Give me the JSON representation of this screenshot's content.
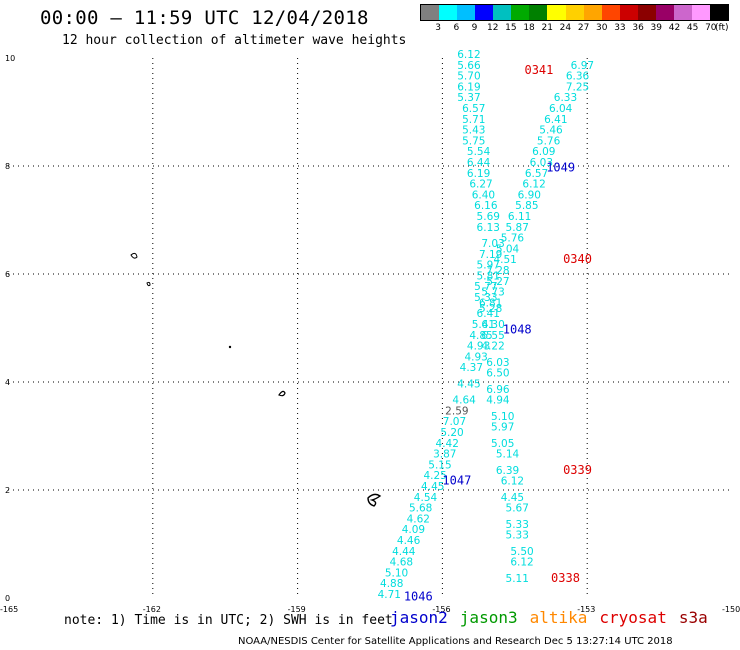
{
  "header": {
    "title": "00:00 — 11:59 UTC 12/04/2018",
    "subtitle": "12 hour collection of altimeter wave heights"
  },
  "colorbar": {
    "unit": "(ft)",
    "colors": [
      "#808080",
      "#00ffff",
      "#00bfff",
      "#0000ff",
      "#00c0c0",
      "#00aa00",
      "#008000",
      "#ffff00",
      "#ffd000",
      "#ffa500",
      "#ff4500",
      "#cc0000",
      "#8b0000",
      "#990066",
      "#cc66cc",
      "#ff99ff",
      "#000000"
    ],
    "labels": [
      "3",
      "6",
      "9",
      "12",
      "15",
      "18",
      "21",
      "24",
      "27",
      "30",
      "33",
      "36",
      "39",
      "42",
      "45",
      "70"
    ]
  },
  "axes": {
    "x_ticks": [
      "-165",
      "-162",
      "-159",
      "-156",
      "-153",
      "-150"
    ],
    "y_ticks": [
      "0",
      "2",
      "4",
      "6",
      "8",
      "10"
    ]
  },
  "colors": {
    "swh": "#00dddd",
    "swh_dark": "#555555",
    "time_jason2": "#0000cc",
    "time_cryosat": "#dd0000",
    "coast": "#000000"
  },
  "tracks": [
    {
      "name": "track-0338-0341",
      "swh": [
        {
          "lon": -155.45,
          "lat": 10.0,
          "v": "6.12"
        },
        {
          "lon": -155.45,
          "lat": 9.8,
          "v": "5.66"
        },
        {
          "lon": -155.45,
          "lat": 9.6,
          "v": "5.70"
        },
        {
          "lon": -155.45,
          "lat": 9.4,
          "v": "6.19"
        },
        {
          "lon": -155.45,
          "lat": 9.2,
          "v": "5.37"
        },
        {
          "lon": -155.35,
          "lat": 9.0,
          "v": "6.57"
        },
        {
          "lon": -155.35,
          "lat": 8.8,
          "v": "5.71"
        },
        {
          "lon": -155.35,
          "lat": 8.6,
          "v": "5.43"
        },
        {
          "lon": -155.35,
          "lat": 8.4,
          "v": "5.75"
        },
        {
          "lon": -155.25,
          "lat": 8.2,
          "v": "5.54"
        },
        {
          "lon": -155.25,
          "lat": 8.0,
          "v": "6.44"
        },
        {
          "lon": -155.25,
          "lat": 7.8,
          "v": "6.19"
        },
        {
          "lon": -155.2,
          "lat": 7.6,
          "v": "6.27"
        },
        {
          "lon": -155.15,
          "lat": 7.4,
          "v": "6.40"
        },
        {
          "lon": -155.1,
          "lat": 7.2,
          "v": "6.16"
        },
        {
          "lon": -155.05,
          "lat": 7.0,
          "v": "5.69"
        },
        {
          "lon": -155.05,
          "lat": 6.8,
          "v": "6.13"
        },
        {
          "lon": -154.95,
          "lat": 6.5,
          "v": "7.03"
        },
        {
          "lon": -155.0,
          "lat": 6.3,
          "v": "7.19"
        },
        {
          "lon": -155.05,
          "lat": 6.1,
          "v": "5.97"
        },
        {
          "lon": -155.05,
          "lat": 5.9,
          "v": "5.81"
        },
        {
          "lon": -155.1,
          "lat": 5.7,
          "v": "5.77"
        },
        {
          "lon": -155.1,
          "lat": 5.5,
          "v": "5.33"
        },
        {
          "lon": -155.0,
          "lat": 5.3,
          "v": "5.28"
        },
        {
          "lon": -154.95,
          "lat": 5.0,
          "v": "6.30"
        },
        {
          "lon": -154.95,
          "lat": 4.8,
          "v": "6.55"
        },
        {
          "lon": -154.95,
          "lat": 4.6,
          "v": "4.22"
        },
        {
          "lon": -154.85,
          "lat": 4.3,
          "v": "6.03"
        },
        {
          "lon": -154.85,
          "lat": 4.1,
          "v": "6.50"
        },
        {
          "lon": -154.85,
          "lat": 3.8,
          "v": "6.96"
        },
        {
          "lon": -154.85,
          "lat": 3.6,
          "v": "4.94"
        },
        {
          "lon": -154.75,
          "lat": 3.3,
          "v": "5.10"
        },
        {
          "lon": -154.75,
          "lat": 3.1,
          "v": "5.97"
        },
        {
          "lon": -154.75,
          "lat": 2.8,
          "v": "5.05"
        },
        {
          "lon": -154.65,
          "lat": 2.6,
          "v": "5.14"
        },
        {
          "lon": -154.65,
          "lat": 2.3,
          "v": "6.39"
        },
        {
          "lon": -154.55,
          "lat": 2.1,
          "v": "6.12"
        },
        {
          "lon": -154.55,
          "lat": 1.8,
          "v": "4.45"
        },
        {
          "lon": -154.45,
          "lat": 1.6,
          "v": "5.67"
        },
        {
          "lon": -154.45,
          "lat": 1.3,
          "v": "5.33"
        },
        {
          "lon": -154.45,
          "lat": 1.1,
          "v": "5.33"
        },
        {
          "lon": -154.35,
          "lat": 0.8,
          "v": "5.50"
        },
        {
          "lon": -154.35,
          "lat": 0.6,
          "v": "6.12"
        },
        {
          "lon": -154.45,
          "lat": 0.3,
          "v": "5.11"
        }
      ],
      "times": [
        {
          "lon": -154.0,
          "lat": 9.7,
          "v": "0341"
        },
        {
          "lon": -153.2,
          "lat": 6.2,
          "v": "0340"
        },
        {
          "lon": -153.2,
          "lat": 2.3,
          "v": "0339"
        },
        {
          "lon": -153.45,
          "lat": 0.3,
          "v": "0338"
        }
      ]
    },
    {
      "name": "track-1046-1049",
      "swh": [
        {
          "lon": -153.1,
          "lat": 9.8,
          "v": "6.97"
        },
        {
          "lon": -153.2,
          "lat": 9.6,
          "v": "6.36"
        },
        {
          "lon": -153.2,
          "lat": 9.4,
          "v": "7.25"
        },
        {
          "lon": -153.45,
          "lat": 9.2,
          "v": "6.33"
        },
        {
          "lon": -153.55,
          "lat": 9.0,
          "v": "6.04"
        },
        {
          "lon": -153.65,
          "lat": 8.8,
          "v": "6.41"
        },
        {
          "lon": -153.75,
          "lat": 8.6,
          "v": "5.46"
        },
        {
          "lon": -153.8,
          "lat": 8.4,
          "v": "5.76"
        },
        {
          "lon": -153.9,
          "lat": 8.2,
          "v": "6.09"
        },
        {
          "lon": -153.95,
          "lat": 8.0,
          "v": "6.03"
        },
        {
          "lon": -154.05,
          "lat": 7.8,
          "v": "6.57"
        },
        {
          "lon": -154.1,
          "lat": 7.6,
          "v": "6.12"
        },
        {
          "lon": -154.2,
          "lat": 7.4,
          "v": "6.90"
        },
        {
          "lon": -154.25,
          "lat": 7.2,
          "v": "5.85"
        },
        {
          "lon": -154.4,
          "lat": 7.0,
          "v": "6.11"
        },
        {
          "lon": -154.45,
          "lat": 6.8,
          "v": "5.87"
        },
        {
          "lon": -154.55,
          "lat": 6.6,
          "v": "5.76"
        },
        {
          "lon": -154.65,
          "lat": 6.4,
          "v": "5.04"
        },
        {
          "lon": -154.7,
          "lat": 6.2,
          "v": "4.51"
        },
        {
          "lon": -154.85,
          "lat": 6.0,
          "v": "7.28"
        },
        {
          "lon": -154.85,
          "lat": 5.8,
          "v": "5.27"
        },
        {
          "lon": -154.95,
          "lat": 5.6,
          "v": "5.73"
        },
        {
          "lon": -155.0,
          "lat": 5.4,
          "v": "6.81"
        },
        {
          "lon": -155.05,
          "lat": 5.2,
          "v": "6.41"
        },
        {
          "lon": -155.15,
          "lat": 5.0,
          "v": "5.41"
        },
        {
          "lon": -155.2,
          "lat": 4.8,
          "v": "4.85"
        },
        {
          "lon": -155.25,
          "lat": 4.6,
          "v": "4.93"
        },
        {
          "lon": -155.3,
          "lat": 4.4,
          "v": "4.93"
        },
        {
          "lon": -155.4,
          "lat": 4.2,
          "v": "4.37"
        },
        {
          "lon": -155.45,
          "lat": 3.9,
          "v": "4.45"
        },
        {
          "lon": -155.55,
          "lat": 3.6,
          "v": "4.64"
        },
        {
          "lon": -155.7,
          "lat": 3.4,
          "v": "2.59"
        },
        {
          "lon": -155.75,
          "lat": 3.2,
          "v": "7.07"
        },
        {
          "lon": -155.8,
          "lat": 3.0,
          "v": "5.20"
        },
        {
          "lon": -155.9,
          "lat": 2.8,
          "v": "4.42"
        },
        {
          "lon": -155.95,
          "lat": 2.6,
          "v": "3.87"
        },
        {
          "lon": -156.05,
          "lat": 2.4,
          "v": "5.15"
        },
        {
          "lon": -156.15,
          "lat": 2.2,
          "v": "4.25"
        },
        {
          "lon": -156.2,
          "lat": 2.0,
          "v": "4.45"
        },
        {
          "lon": -156.35,
          "lat": 1.8,
          "v": "4.54"
        },
        {
          "lon": -156.45,
          "lat": 1.6,
          "v": "5.68"
        },
        {
          "lon": -156.5,
          "lat": 1.4,
          "v": "4.62"
        },
        {
          "lon": -156.6,
          "lat": 1.2,
          "v": "4.09"
        },
        {
          "lon": -156.7,
          "lat": 1.0,
          "v": "4.46"
        },
        {
          "lon": -156.8,
          "lat": 0.8,
          "v": "4.44"
        },
        {
          "lon": -156.85,
          "lat": 0.6,
          "v": "4.68"
        },
        {
          "lon": -156.95,
          "lat": 0.4,
          "v": "5.10"
        },
        {
          "lon": -157.05,
          "lat": 0.2,
          "v": "4.88"
        },
        {
          "lon": -157.1,
          "lat": 0.0,
          "v": "4.71"
        }
      ],
      "times": [
        {
          "lon": -153.55,
          "lat": 7.9,
          "v": "1049"
        },
        {
          "lon": -154.45,
          "lat": 4.9,
          "v": "1048"
        },
        {
          "lon": -155.7,
          "lat": 2.1,
          "v": "1047"
        },
        {
          "lon": -156.5,
          "lat": -0.05,
          "v": "1046"
        }
      ]
    }
  ],
  "footer": {
    "note": "note: 1) Time is in UTC; 2) SWH is in feet",
    "satellites": [
      {
        "name": "jason2",
        "color": "#0000cc"
      },
      {
        "name": "jason3",
        "color": "#009900"
      },
      {
        "name": "altika",
        "color": "#ff8800"
      },
      {
        "name": "cryosat",
        "color": "#dd0000"
      },
      {
        "name": "s3a",
        "color": "#990000"
      }
    ],
    "credit": "NOAA/NESDIS Center for Satellite Applications and Research   Dec  5 13:27:14 UTC 2018"
  }
}
